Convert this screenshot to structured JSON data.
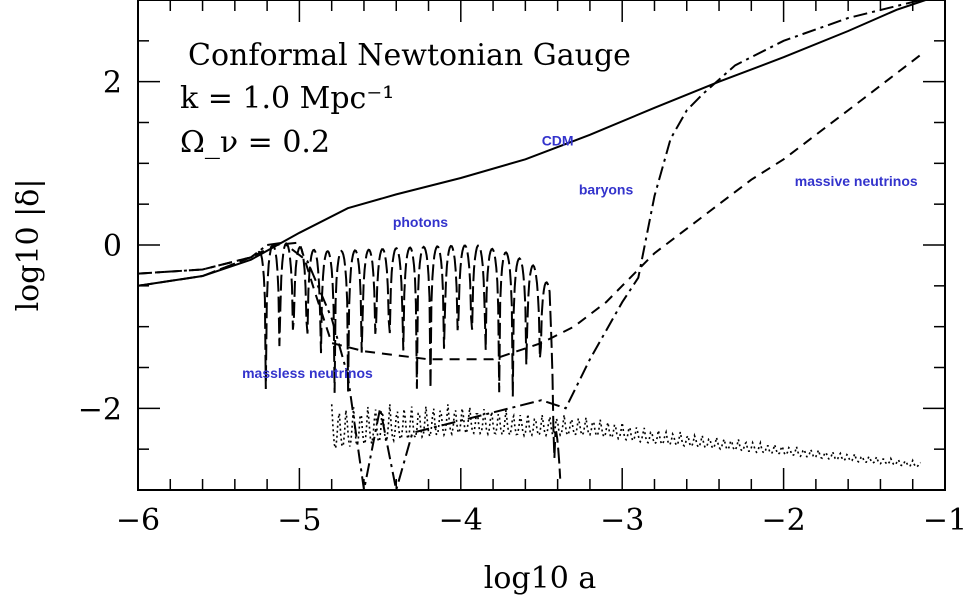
{
  "chart_data": {
    "type": "line",
    "xlabel": "log10 a",
    "ylabel": "log10 |δ|",
    "xlim": [
      -6,
      -1
    ],
    "ylim": [
      -3,
      3
    ],
    "x_ticks": [
      -6,
      -5,
      -4,
      -3,
      -2,
      -1
    ],
    "y_ticks": [
      -2,
      0,
      2
    ],
    "x_tick_labels": [
      "−6",
      "−5",
      "−4",
      "−3",
      "−2",
      "−1"
    ],
    "y_tick_labels": [
      "−2",
      "0",
      "2"
    ],
    "info_lines": [
      "Conformal Newtonian Gauge",
      "k = 1.0 Mpc⁻¹",
      "Ω_ν = 0.2"
    ],
    "annotation_color": "#3333cc",
    "series": [
      {
        "name": "CDM",
        "style": "solid",
        "x": [
          -6,
          -5.6,
          -5.3,
          -5.0,
          -4.7,
          -4.4,
          -4.0,
          -3.6,
          -3.2,
          -2.8,
          -2.4,
          -2.0,
          -1.6,
          -1.3,
          -1.12
        ],
        "y": [
          -0.5,
          -0.38,
          -0.18,
          0.15,
          0.45,
          0.62,
          0.82,
          1.05,
          1.35,
          1.68,
          2.0,
          2.3,
          2.62,
          2.88,
          3.0
        ]
      },
      {
        "name": "baryons",
        "style": "dash-dot",
        "x": [
          -6,
          -5.6,
          -5.3,
          -5.2,
          -5.1,
          -4.95,
          -4.8,
          -4.7,
          -4.6,
          -4.5,
          -4.4,
          -4.3,
          -3.5,
          -3.35,
          -3.2,
          -3.0,
          -2.9,
          -2.8,
          -2.7,
          -2.6,
          -2.5,
          -2.3,
          -2.0,
          -1.6,
          -1.15
        ],
        "y": [
          -0.35,
          -0.3,
          -0.15,
          0.0,
          0.03,
          -0.2,
          -0.9,
          -1.6,
          -3.0,
          -2.0,
          -3.0,
          -2.3,
          -1.9,
          -2.0,
          -1.4,
          -0.7,
          -0.4,
          0.6,
          1.3,
          1.65,
          1.85,
          2.2,
          2.5,
          2.78,
          3.0
        ]
      },
      {
        "name": "photons",
        "style": "long-dash",
        "period": 0.085,
        "x": [
          -6,
          -5.6,
          -5.3,
          -5.2,
          -5.1,
          -4.95,
          -4.8,
          -4.5,
          -4.2,
          -3.9,
          -3.7,
          -3.55,
          -3.45,
          -3.38
        ],
        "y": [
          -0.5,
          -0.38,
          -0.15,
          -0.02,
          0.03,
          -0.05,
          -0.08,
          -0.05,
          -0.02,
          0.0,
          -0.1,
          -0.25,
          -0.5,
          -3.0
        ]
      },
      {
        "name": "massless neutrinos",
        "style": "dotted",
        "x": [
          -4.8,
          -4.4,
          -4.0,
          -3.6,
          -3.2,
          -2.8,
          -2.4,
          -2.0,
          -1.6,
          -1.15
        ],
        "y": [
          -1.95,
          -1.95,
          -1.95,
          -2.05,
          -2.1,
          -2.25,
          -2.35,
          -2.45,
          -2.55,
          -2.65
        ]
      },
      {
        "name": "massive neutrinos",
        "style": "dashed",
        "x": [
          -6,
          -5.6,
          -5.3,
          -5.15,
          -5.0,
          -4.9,
          -4.8,
          -4.6,
          -4.2,
          -3.8,
          -3.5,
          -3.3,
          -3.1,
          -3.0,
          -2.8,
          -2.6,
          -2.4,
          -2.2,
          -2.0,
          -1.8,
          -1.5,
          -1.15
        ],
        "y": [
          -0.35,
          -0.3,
          -0.15,
          0.0,
          0.03,
          -0.6,
          -1.2,
          -1.3,
          -1.4,
          -1.4,
          -1.2,
          -1.0,
          -0.7,
          -0.5,
          -0.1,
          0.2,
          0.5,
          0.8,
          1.05,
          1.35,
          1.8,
          2.33
        ]
      }
    ],
    "annotations": [
      {
        "text": "CDM",
        "x": -3.4,
        "y": 1.22
      },
      {
        "text": "baryons",
        "x": -3.1,
        "y": 0.62
      },
      {
        "text": "massive neutrinos",
        "x": -1.55,
        "y": 0.72
      },
      {
        "text": "photons",
        "x": -4.25,
        "y": 0.22
      },
      {
        "text": "massless neutrinos",
        "x": -4.95,
        "y": -1.63
      }
    ]
  }
}
